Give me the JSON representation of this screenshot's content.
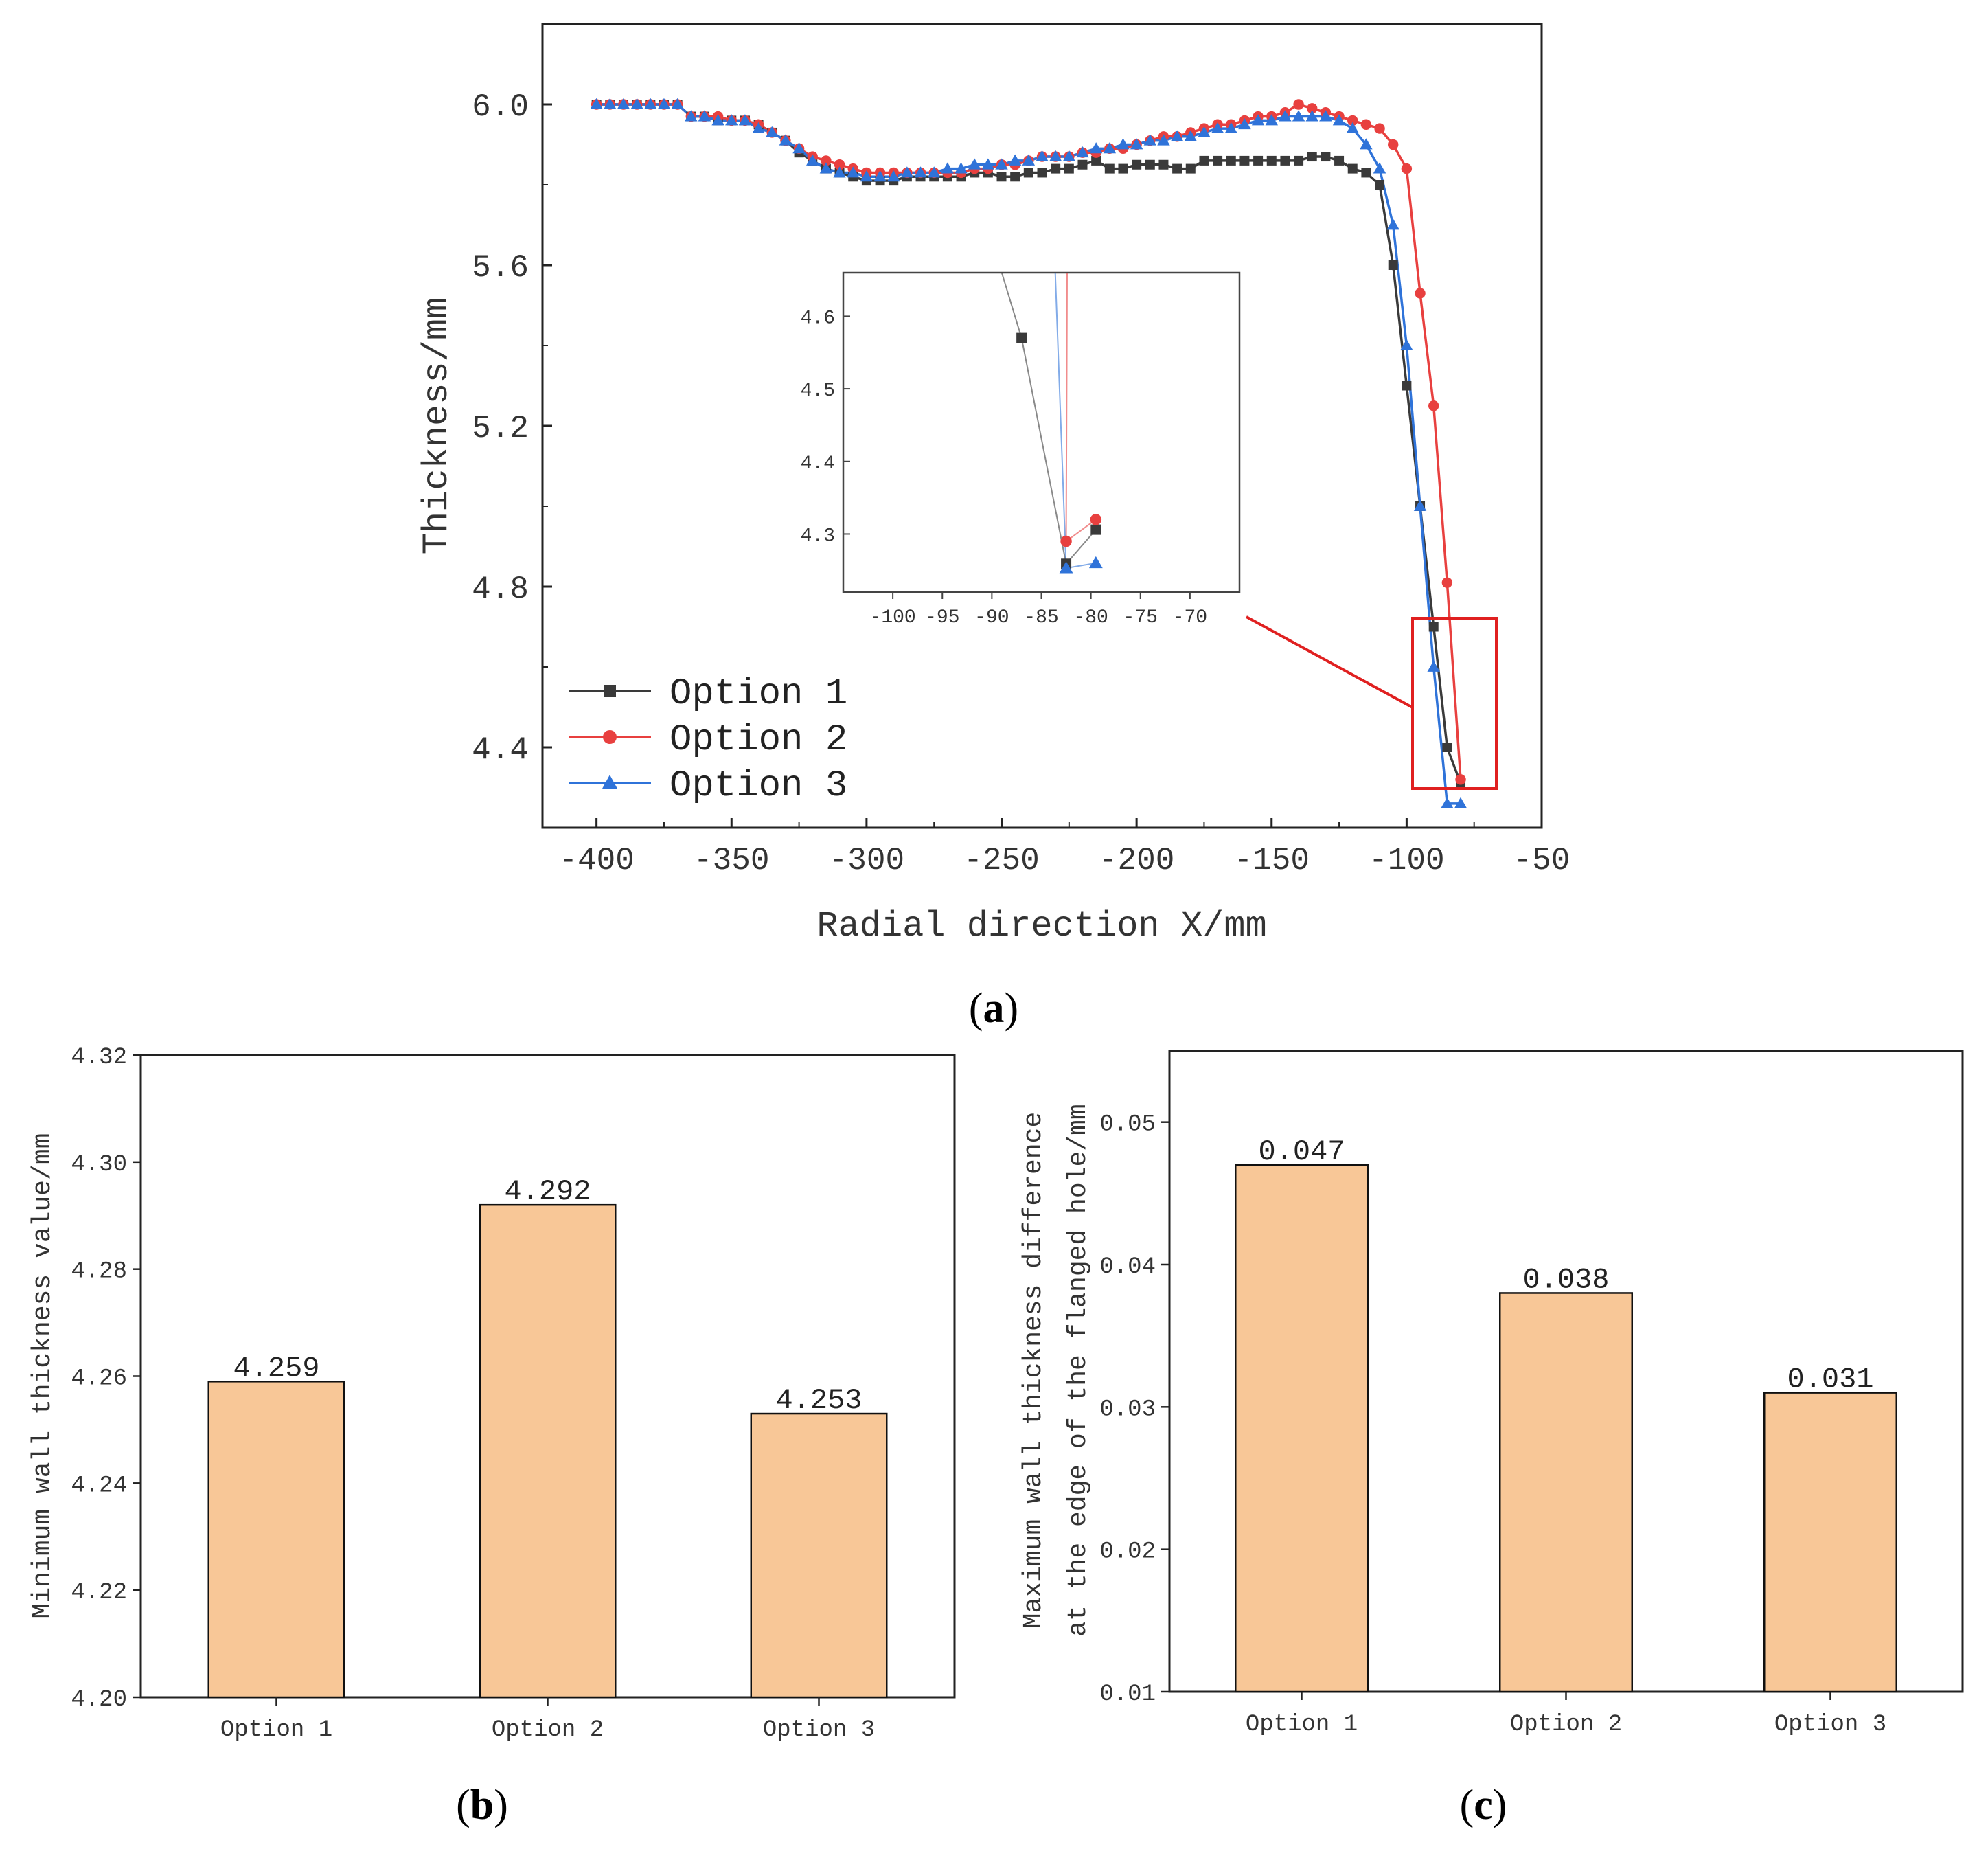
{
  "colors": {
    "option1": "#3a3a3a",
    "option2": "#e8403f",
    "option3": "#2f73d9",
    "bar_fill": "#f8c797",
    "zoom_box": "#e02020"
  },
  "chart_data": [
    {
      "id": "a",
      "type": "line",
      "panel_label": "a",
      "xlabel": "Radial direction X/mm",
      "ylabel": "Thickness/mm",
      "xlim": [
        -420,
        -50
      ],
      "ylim": [
        4.2,
        6.2
      ],
      "x_ticks": [
        "-400",
        "-350",
        "-300",
        "-250",
        "-200",
        "-150",
        "-100",
        "-50"
      ],
      "y_ticks": [
        "6.0",
        "5.6",
        "5.2",
        "4.8",
        "4.4"
      ],
      "legend": [
        "Option 1",
        "Option 2",
        "Option 3"
      ],
      "series": [
        {
          "name": "Option 1",
          "x": [
            -400,
            -395,
            -390,
            -385,
            -380,
            -375,
            -370,
            -365,
            -360,
            -355,
            -350,
            -345,
            -340,
            -335,
            -330,
            -325,
            -320,
            -315,
            -310,
            -305,
            -300,
            -295,
            -290,
            -285,
            -280,
            -275,
            -270,
            -265,
            -260,
            -255,
            -250,
            -245,
            -240,
            -235,
            -230,
            -225,
            -220,
            -215,
            -210,
            -205,
            -200,
            -195,
            -190,
            -185,
            -180,
            -175,
            -170,
            -165,
            -160,
            -155,
            -150,
            -145,
            -140,
            -135,
            -130,
            -125,
            -120,
            -115,
            -110,
            -105,
            -100,
            -95,
            -90,
            -85,
            -80
          ],
          "y": [
            6.0,
            6.0,
            6.0,
            6.0,
            6.0,
            6.0,
            6.0,
            5.97,
            5.97,
            5.96,
            5.96,
            5.96,
            5.95,
            5.93,
            5.91,
            5.88,
            5.86,
            5.84,
            5.83,
            5.82,
            5.81,
            5.81,
            5.81,
            5.82,
            5.82,
            5.82,
            5.82,
            5.82,
            5.83,
            5.83,
            5.82,
            5.82,
            5.83,
            5.83,
            5.84,
            5.84,
            5.85,
            5.86,
            5.84,
            5.84,
            5.85,
            5.85,
            5.85,
            5.84,
            5.84,
            5.86,
            5.86,
            5.86,
            5.86,
            5.86,
            5.86,
            5.86,
            5.86,
            5.87,
            5.87,
            5.86,
            5.84,
            5.83,
            5.8,
            5.6,
            5.3,
            5.0,
            4.7,
            4.4,
            4.31
          ]
        },
        {
          "name": "Option 2",
          "x": [
            -400,
            -395,
            -390,
            -385,
            -380,
            -375,
            -370,
            -365,
            -360,
            -355,
            -350,
            -345,
            -340,
            -335,
            -330,
            -325,
            -320,
            -315,
            -310,
            -305,
            -300,
            -295,
            -290,
            -285,
            -280,
            -275,
            -270,
            -265,
            -260,
            -255,
            -250,
            -245,
            -240,
            -235,
            -230,
            -225,
            -220,
            -215,
            -210,
            -205,
            -200,
            -195,
            -190,
            -185,
            -180,
            -175,
            -170,
            -165,
            -160,
            -155,
            -150,
            -145,
            -140,
            -135,
            -130,
            -125,
            -120,
            -115,
            -110,
            -105,
            -100,
            -95,
            -90,
            -85,
            -80
          ],
          "y": [
            6.0,
            6.0,
            6.0,
            6.0,
            6.0,
            6.0,
            6.0,
            5.97,
            5.97,
            5.97,
            5.96,
            5.96,
            5.95,
            5.93,
            5.91,
            5.89,
            5.87,
            5.86,
            5.85,
            5.84,
            5.83,
            5.83,
            5.83,
            5.83,
            5.83,
            5.83,
            5.83,
            5.83,
            5.84,
            5.84,
            5.85,
            5.85,
            5.86,
            5.87,
            5.87,
            5.87,
            5.88,
            5.88,
            5.89,
            5.89,
            5.9,
            5.91,
            5.92,
            5.92,
            5.93,
            5.94,
            5.95,
            5.95,
            5.96,
            5.97,
            5.97,
            5.98,
            6.0,
            5.99,
            5.98,
            5.97,
            5.96,
            5.95,
            5.94,
            5.9,
            5.84,
            5.53,
            5.25,
            4.81,
            4.32
          ]
        },
        {
          "name": "Option 3",
          "x": [
            -400,
            -395,
            -390,
            -385,
            -380,
            -375,
            -370,
            -365,
            -360,
            -355,
            -350,
            -345,
            -340,
            -335,
            -330,
            -325,
            -320,
            -315,
            -310,
            -305,
            -300,
            -295,
            -290,
            -285,
            -280,
            -275,
            -270,
            -265,
            -260,
            -255,
            -250,
            -245,
            -240,
            -235,
            -230,
            -225,
            -220,
            -215,
            -210,
            -205,
            -200,
            -195,
            -190,
            -185,
            -180,
            -175,
            -170,
            -165,
            -160,
            -155,
            -150,
            -145,
            -140,
            -135,
            -130,
            -125,
            -120,
            -115,
            -110,
            -105,
            -100,
            -95,
            -90,
            -85,
            -80
          ],
          "y": [
            6.0,
            6.0,
            6.0,
            6.0,
            6.0,
            6.0,
            6.0,
            5.97,
            5.97,
            5.96,
            5.96,
            5.96,
            5.94,
            5.93,
            5.91,
            5.89,
            5.86,
            5.84,
            5.83,
            5.83,
            5.82,
            5.82,
            5.82,
            5.83,
            5.83,
            5.83,
            5.84,
            5.84,
            5.85,
            5.85,
            5.85,
            5.86,
            5.86,
            5.87,
            5.87,
            5.87,
            5.88,
            5.89,
            5.89,
            5.9,
            5.9,
            5.91,
            5.91,
            5.92,
            5.92,
            5.93,
            5.94,
            5.94,
            5.95,
            5.96,
            5.96,
            5.97,
            5.97,
            5.97,
            5.97,
            5.96,
            5.94,
            5.9,
            5.84,
            5.7,
            5.4,
            5.0,
            4.6,
            4.26,
            4.26
          ]
        }
      ],
      "inset": {
        "xlim": [
          -105,
          -65
        ],
        "ylim": [
          4.22,
          4.66
        ],
        "x_ticks": [
          "-100",
          "-95",
          "-90",
          "-85",
          "-80",
          "-75",
          "-70"
        ],
        "y_ticks": [
          "4.6",
          "4.5",
          "4.4",
          "4.3"
        ],
        "series": [
          {
            "name": "Option 1",
            "x": [
              -87,
              -82.5,
              -79.5
            ],
            "y": [
              4.57,
              4.259,
              4.306
            ],
            "in_x": -89,
            "in_y": 4.66
          },
          {
            "name": "Option 2",
            "x": [
              -82.5,
              -79.5
            ],
            "y": [
              4.29,
              4.32
            ],
            "in_x": -82.4,
            "in_y": 4.66
          },
          {
            "name": "Option 3",
            "x": [
              -82.5,
              -79.5
            ],
            "y": [
              4.253,
              4.26
            ],
            "in_x": -83.6,
            "in_y": 4.66
          }
        ]
      }
    },
    {
      "id": "b",
      "type": "bar",
      "panel_label": "b",
      "ylabel": "Minimum wall thickness value/mm",
      "categories": [
        "Option 1",
        "Option 2",
        "Option 3"
      ],
      "values": [
        4.259,
        4.292,
        4.253
      ],
      "value_labels": [
        "4.259",
        "4.292",
        "4.253"
      ],
      "ylim": [
        4.2,
        4.32
      ],
      "y_ticks": [
        "4.32",
        "4.30",
        "4.28",
        "4.26",
        "4.24",
        "4.22",
        "4.20"
      ]
    },
    {
      "id": "c",
      "type": "bar",
      "panel_label": "c",
      "ylabel_line1": "Maximum wall thickness difference",
      "ylabel_line2": "at the edge of the flanged hole/mm",
      "categories": [
        "Option 1",
        "Option 2",
        "Option 3"
      ],
      "values": [
        0.047,
        0.038,
        0.031
      ],
      "value_labels": [
        "0.047",
        "0.038",
        "0.031"
      ],
      "ylim": [
        0.01,
        0.055
      ],
      "y_ticks": [
        "0.05",
        "0.04",
        "0.03",
        "0.02",
        "0.01"
      ]
    }
  ]
}
